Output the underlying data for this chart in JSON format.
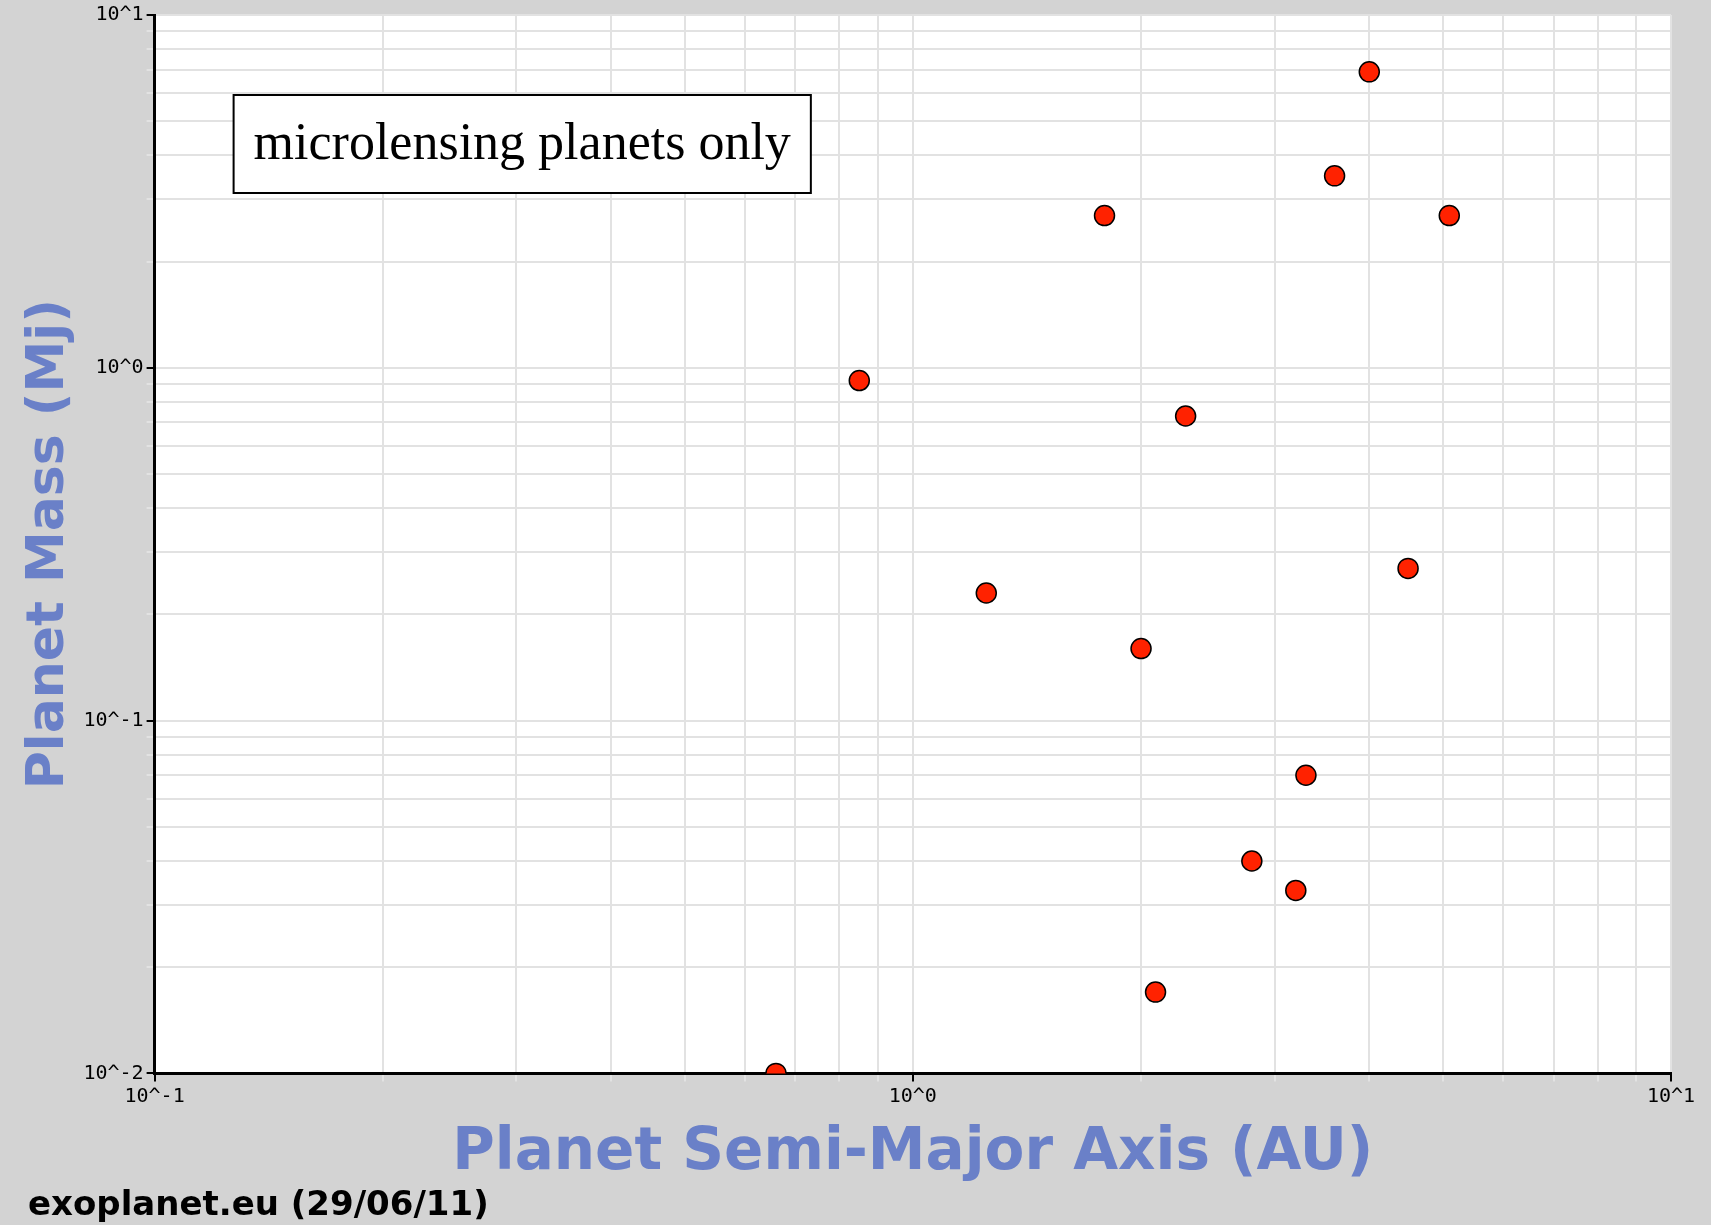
{
  "chart_data": {
    "type": "scatter",
    "xlabel": "Planet Semi-Major Axis (AU)",
    "ylabel": "Planet Mass (Mj)",
    "annotations": [
      "microlensing planets only",
      "exoplanet.eu (29/06/11)"
    ],
    "log": "xy",
    "grid": true,
    "legend": false,
    "marker": "circle",
    "xlim": [
      0.1,
      10
    ],
    "ylim": [
      0.01,
      10
    ],
    "xticks": [
      {
        "value": 0.1,
        "label": "10^-1"
      },
      {
        "value": 0.2,
        "label": null
      },
      {
        "value": 0.3,
        "label": null
      },
      {
        "value": 0.4,
        "label": null
      },
      {
        "value": 0.5,
        "label": null
      },
      {
        "value": 0.6,
        "label": null
      },
      {
        "value": 0.7,
        "label": null
      },
      {
        "value": 0.8,
        "label": null
      },
      {
        "value": 0.9,
        "label": null
      },
      {
        "value": 1,
        "label": "10^0"
      },
      {
        "value": 2,
        "label": null
      },
      {
        "value": 3,
        "label": null
      },
      {
        "value": 4,
        "label": null
      },
      {
        "value": 5,
        "label": null
      },
      {
        "value": 6,
        "label": null
      },
      {
        "value": 7,
        "label": null
      },
      {
        "value": 8,
        "label": null
      },
      {
        "value": 9,
        "label": null
      },
      {
        "value": 10,
        "label": "10^1"
      }
    ],
    "yticks": [
      {
        "value": 0.01,
        "label": "10^-2"
      },
      {
        "value": 0.02,
        "label": null
      },
      {
        "value": 0.03,
        "label": null
      },
      {
        "value": 0.04,
        "label": null
      },
      {
        "value": 0.05,
        "label": null
      },
      {
        "value": 0.06,
        "label": null
      },
      {
        "value": 0.07,
        "label": null
      },
      {
        "value": 0.08,
        "label": null
      },
      {
        "value": 0.09,
        "label": null
      },
      {
        "value": 0.1,
        "label": "10^-1"
      },
      {
        "value": 0.2,
        "label": null
      },
      {
        "value": 0.3,
        "label": null
      },
      {
        "value": 0.4,
        "label": null
      },
      {
        "value": 0.5,
        "label": null
      },
      {
        "value": 0.6,
        "label": null
      },
      {
        "value": 0.7,
        "label": null
      },
      {
        "value": 0.8,
        "label": null
      },
      {
        "value": 0.9,
        "label": null
      },
      {
        "value": 1,
        "label": "10^0"
      },
      {
        "value": 2,
        "label": null
      },
      {
        "value": 3,
        "label": null
      },
      {
        "value": 4,
        "label": null
      },
      {
        "value": 5,
        "label": null
      },
      {
        "value": 6,
        "label": null
      },
      {
        "value": 7,
        "label": null
      },
      {
        "value": 8,
        "label": null
      },
      {
        "value": 9,
        "label": null
      },
      {
        "value": 10,
        "label": "10^1"
      }
    ],
    "series": [
      {
        "color": "#ff2200",
        "x": [
          4.0,
          3.6,
          1.79,
          5.1,
          0.85,
          2.29,
          1.25,
          4.5,
          2.0,
          3.3,
          2.8,
          3.2,
          2.09,
          0.66
        ],
        "values": [
          6.9,
          3.5,
          2.7,
          2.7,
          0.92,
          0.73,
          0.23,
          0.27,
          0.16,
          0.07,
          0.04,
          0.033,
          0.017,
          0.01
        ]
      }
    ]
  }
}
